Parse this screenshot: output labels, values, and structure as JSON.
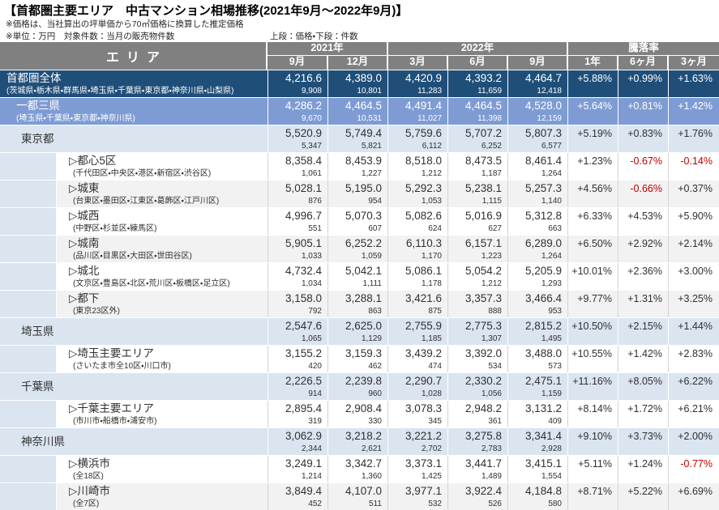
{
  "title": "【首都圏主要エリア　中古マンション相場推移(2021年9月～2022年9月)】",
  "notes": {
    "note1": "※価格は、当社算出の坪単価から70㎡価格に換算した推定価格",
    "note2": "※単位：万円　対象件数：当月の販売物件数",
    "legend": "上段：価格・下段：件数"
  },
  "colors": {
    "navy": "#1F4E79",
    "medium_blue": "#7E9CD3",
    "light_blue": "#DAE5F0",
    "gray_row": "#F2F2F2",
    "header_gray": "#808080",
    "negative_red": "#C00000"
  },
  "chart_data": {
    "type": "table",
    "title": "首都圏主要エリア　中古マンション相場推移(2021年9月～2022年9月)",
    "area_header": "エリア",
    "column_groups": [
      {
        "label": "2021年",
        "months": [
          "9月",
          "12月"
        ]
      },
      {
        "label": "2022年",
        "months": [
          "3月",
          "6月",
          "9月"
        ]
      },
      {
        "label": "騰落率",
        "months": [
          "1年",
          "6ヶ月",
          "3ヶ月"
        ]
      }
    ],
    "rows": [
      {
        "name": "首都圏全体",
        "desc": "(茨城県・栃木県・群馬県・埼玉県・千葉県・東京都・神奈川県・山梨県)",
        "level": "top",
        "shade": "navy",
        "prices": [
          "4,216.6",
          "4,389.0",
          "4,420.9",
          "4,393.2",
          "4,464.7"
        ],
        "counts": [
          "9,908",
          "10,801",
          "11,283",
          "11,659",
          "12,418"
        ],
        "rates": [
          "+5.88%",
          "+0.99%",
          "+1.63%"
        ]
      },
      {
        "name": "一都三県",
        "desc": "(埼玉県・千葉県・東京都・神奈川県)",
        "level": "second",
        "shade": "blue",
        "prices": [
          "4,286.2",
          "4,464.5",
          "4,491.4",
          "4,464.5",
          "4,528.0"
        ],
        "counts": [
          "9,670",
          "10,531",
          "11,027",
          "11,398",
          "12,159"
        ],
        "rates": [
          "+5.64%",
          "+0.81%",
          "+1.42%"
        ]
      },
      {
        "name": "東京都",
        "desc": "",
        "level": "pref",
        "shade": "lightblue",
        "prices": [
          "5,520.9",
          "5,749.4",
          "5,759.6",
          "5,707.2",
          "5,807.3"
        ],
        "counts": [
          "5,347",
          "5,821",
          "6,112",
          "6,252",
          "6,577"
        ],
        "rates": [
          "+5.19%",
          "+0.83%",
          "+1.76%"
        ]
      },
      {
        "name": "▷都心5区",
        "desc": "(千代田区・中央区・港区・新宿区・渋谷区)",
        "level": "sub",
        "shade": "white",
        "prices": [
          "8,358.4",
          "8,453.9",
          "8,518.0",
          "8,473.5",
          "8,461.4"
        ],
        "counts": [
          "1,061",
          "1,227",
          "1,212",
          "1,187",
          "1,264"
        ],
        "rates": [
          "+1.23%",
          "-0.67%",
          "-0.14%"
        ]
      },
      {
        "name": "▷城東",
        "desc": "(台東区・墨田区・江東区・葛飾区・江戸川区)",
        "level": "sub",
        "shade": "gray",
        "prices": [
          "5,028.1",
          "5,195.0",
          "5,292.3",
          "5,238.1",
          "5,257.3"
        ],
        "counts": [
          "876",
          "954",
          "1,053",
          "1,115",
          "1,140"
        ],
        "rates": [
          "+4.56%",
          "-0.66%",
          "+0.37%"
        ]
      },
      {
        "name": "▷城西",
        "desc": "(中野区・杉並区・練馬区)",
        "level": "sub",
        "shade": "white",
        "prices": [
          "4,996.7",
          "5,070.3",
          "5,082.6",
          "5,016.9",
          "5,312.8"
        ],
        "counts": [
          "551",
          "607",
          "624",
          "627",
          "663"
        ],
        "rates": [
          "+6.33%",
          "+4.53%",
          "+5.90%"
        ]
      },
      {
        "name": "▷城南",
        "desc": "(品川区・目黒区・大田区・世田谷区)",
        "level": "sub",
        "shade": "gray",
        "prices": [
          "5,905.1",
          "6,252.2",
          "6,110.3",
          "6,157.1",
          "6,289.0"
        ],
        "counts": [
          "1,033",
          "1,059",
          "1,170",
          "1,223",
          "1,264"
        ],
        "rates": [
          "+6.50%",
          "+2.92%",
          "+2.14%"
        ]
      },
      {
        "name": "▷城北",
        "desc": "(文京区・豊島区・北区・荒川区・板橋区・足立区)",
        "level": "sub",
        "shade": "white",
        "prices": [
          "4,732.4",
          "5,042.1",
          "5,086.1",
          "5,054.2",
          "5,205.9"
        ],
        "counts": [
          "1,034",
          "1,111",
          "1,178",
          "1,212",
          "1,293"
        ],
        "rates": [
          "+10.01%",
          "+2.36%",
          "+3.00%"
        ]
      },
      {
        "name": "▷都下",
        "desc": "(東京23区外)",
        "level": "sub",
        "shade": "gray",
        "prices": [
          "3,158.0",
          "3,288.1",
          "3,421.6",
          "3,357.3",
          "3,466.4"
        ],
        "counts": [
          "792",
          "863",
          "875",
          "888",
          "953"
        ],
        "rates": [
          "+9.77%",
          "+1.31%",
          "+3.25%"
        ]
      },
      {
        "name": "埼玉県",
        "desc": "",
        "level": "pref",
        "shade": "lightblue",
        "prices": [
          "2,547.6",
          "2,625.0",
          "2,755.9",
          "2,775.3",
          "2,815.2"
        ],
        "counts": [
          "1,065",
          "1,129",
          "1,185",
          "1,307",
          "1,495"
        ],
        "rates": [
          "+10.50%",
          "+2.15%",
          "+1.44%"
        ]
      },
      {
        "name": "▷埼玉主要エリア",
        "desc": "(さいたま市全10区・川口市)",
        "level": "sub",
        "shade": "white",
        "prices": [
          "3,155.2",
          "3,159.3",
          "3,439.2",
          "3,392.0",
          "3,488.0"
        ],
        "counts": [
          "420",
          "462",
          "474",
          "534",
          "573"
        ],
        "rates": [
          "+10.55%",
          "+1.42%",
          "+2.83%"
        ]
      },
      {
        "name": "千葉県",
        "desc": "",
        "level": "pref",
        "shade": "lightblue",
        "prices": [
          "2,226.5",
          "2,239.8",
          "2,290.7",
          "2,330.2",
          "2,475.1"
        ],
        "counts": [
          "914",
          "960",
          "1,028",
          "1,056",
          "1,159"
        ],
        "rates": [
          "+11.16%",
          "+8.05%",
          "+6.22%"
        ]
      },
      {
        "name": "▷千葉主要エリア",
        "desc": "(市川市・船橋市・浦安市)",
        "level": "sub",
        "shade": "white",
        "prices": [
          "2,895.4",
          "2,908.4",
          "3,078.3",
          "2,948.2",
          "3,131.2"
        ],
        "counts": [
          "319",
          "330",
          "345",
          "361",
          "409"
        ],
        "rates": [
          "+8.14%",
          "+1.72%",
          "+6.21%"
        ]
      },
      {
        "name": "神奈川県",
        "desc": "",
        "level": "pref",
        "shade": "lightblue",
        "prices": [
          "3,062.9",
          "3,218.2",
          "3,221.2",
          "3,275.8",
          "3,341.4"
        ],
        "counts": [
          "2,344",
          "2,621",
          "2,702",
          "2,783",
          "2,928"
        ],
        "rates": [
          "+9.10%",
          "+3.73%",
          "+2.00%"
        ]
      },
      {
        "name": "▷横浜市",
        "desc": "(全18区)",
        "level": "sub",
        "shade": "white",
        "prices": [
          "3,249.1",
          "3,342.7",
          "3,373.1",
          "3,441.7",
          "3,415.1"
        ],
        "counts": [
          "1,214",
          "1,360",
          "1,425",
          "1,489",
          "1,554"
        ],
        "rates": [
          "+5.11%",
          "+1.24%",
          "-0.77%"
        ]
      },
      {
        "name": "▷川崎市",
        "desc": "(全7区)",
        "level": "sub",
        "shade": "gray",
        "prices": [
          "3,849.4",
          "4,107.0",
          "3,977.1",
          "3,922.4",
          "4,184.8"
        ],
        "counts": [
          "452",
          "511",
          "532",
          "526",
          "580"
        ],
        "rates": [
          "+8.71%",
          "+5.22%",
          "+6.69%"
        ]
      }
    ]
  }
}
